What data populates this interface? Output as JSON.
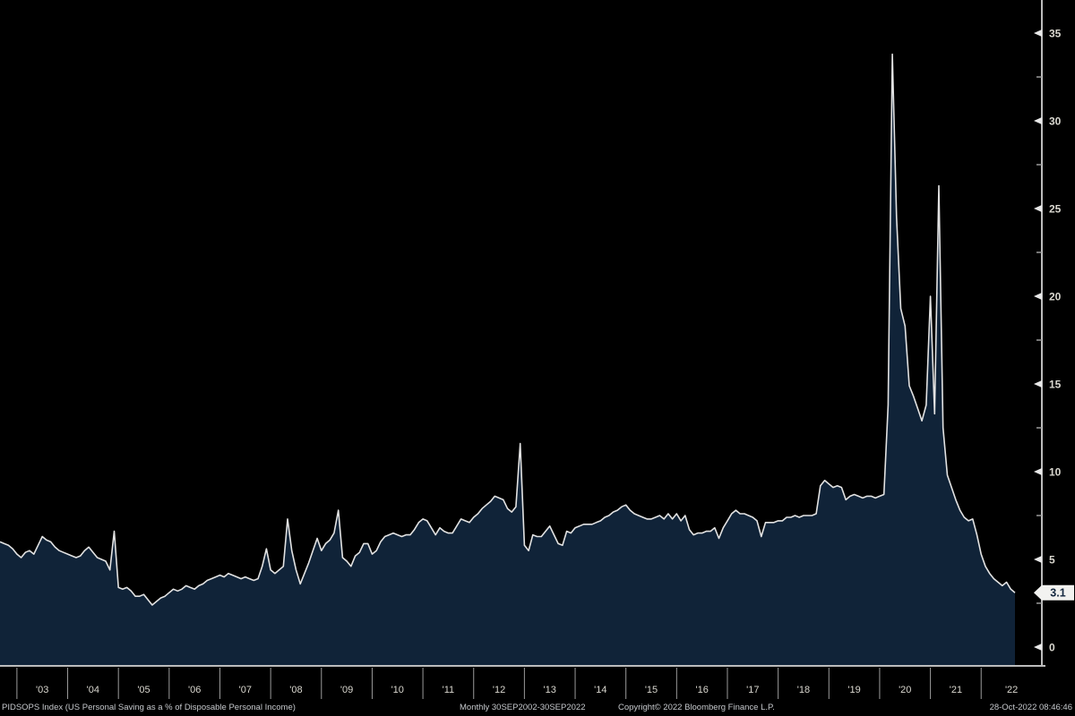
{
  "chart_data": {
    "type": "area",
    "title": "US Personal Saving as a % of Disposable Personal Income",
    "security": "PIDSOPS Index",
    "periodicity": "Monthly",
    "date_range": "30SEP2002-30SEP2022",
    "x_start": "Sep 2002",
    "x_end": "Sep 2022",
    "x_tick_labels": [
      "'03",
      "'04",
      "'05",
      "'06",
      "'07",
      "'08",
      "'09",
      "'10",
      "'11",
      "'12",
      "'13",
      "'14",
      "'15",
      "'16",
      "'17",
      "'18",
      "'19",
      "'20",
      "'21",
      "'22"
    ],
    "y_ticks": [
      0,
      5,
      10,
      15,
      20,
      25,
      30,
      35
    ],
    "y_minor_ticks": [
      2.5,
      7.5,
      12.5,
      17.5,
      22.5,
      27.5,
      32.5
    ],
    "ylim": [
      -1.07,
      36.9
    ],
    "grid": "off",
    "legend": "none",
    "last_value": 3.1,
    "last_value_label": "3.1",
    "series": [
      {
        "name": "PIDSOPS Index",
        "frequency": "monthly",
        "start": "2002-09",
        "end": "2022-09",
        "values": [
          6.0,
          5.9,
          5.8,
          5.6,
          5.3,
          5.1,
          5.4,
          5.5,
          5.3,
          5.8,
          6.3,
          6.1,
          6.0,
          5.7,
          5.5,
          5.4,
          5.3,
          5.2,
          5.1,
          5.2,
          5.5,
          5.7,
          5.4,
          5.1,
          5.0,
          4.9,
          4.4,
          6.6,
          3.4,
          3.3,
          3.4,
          3.2,
          2.9,
          2.9,
          3.0,
          2.7,
          2.4,
          2.6,
          2.8,
          2.9,
          3.1,
          3.3,
          3.2,
          3.3,
          3.5,
          3.4,
          3.3,
          3.5,
          3.6,
          3.8,
          3.9,
          4.0,
          4.1,
          4.0,
          4.2,
          4.1,
          4.0,
          3.9,
          4.0,
          3.9,
          3.8,
          3.9,
          4.6,
          5.6,
          4.4,
          4.2,
          4.4,
          4.6,
          7.3,
          5.5,
          4.4,
          3.6,
          4.2,
          4.8,
          5.5,
          6.2,
          5.5,
          5.9,
          6.1,
          6.5,
          7.8,
          5.1,
          4.9,
          4.6,
          5.2,
          5.4,
          5.9,
          5.9,
          5.3,
          5.5,
          6.0,
          6.3,
          6.4,
          6.5,
          6.4,
          6.3,
          6.4,
          6.4,
          6.7,
          7.1,
          7.3,
          7.2,
          6.8,
          6.4,
          6.8,
          6.6,
          6.5,
          6.5,
          6.9,
          7.3,
          7.2,
          7.1,
          7.4,
          7.6,
          7.9,
          8.1,
          8.3,
          8.6,
          8.5,
          8.4,
          7.9,
          7.7,
          8.0,
          11.6,
          5.8,
          5.5,
          6.4,
          6.3,
          6.3,
          6.6,
          6.9,
          6.4,
          5.9,
          5.8,
          6.6,
          6.5,
          6.8,
          6.9,
          7.0,
          7.0,
          7.0,
          7.1,
          7.2,
          7.4,
          7.5,
          7.7,
          7.8,
          8.0,
          8.1,
          7.8,
          7.6,
          7.5,
          7.4,
          7.3,
          7.3,
          7.4,
          7.5,
          7.3,
          7.6,
          7.3,
          7.6,
          7.2,
          7.5,
          6.7,
          6.4,
          6.5,
          6.5,
          6.6,
          6.6,
          6.8,
          6.2,
          6.8,
          7.2,
          7.6,
          7.8,
          7.6,
          7.6,
          7.5,
          7.4,
          7.2,
          6.3,
          7.1,
          7.1,
          7.1,
          7.2,
          7.2,
          7.4,
          7.4,
          7.5,
          7.4,
          7.5,
          7.5,
          7.5,
          7.6,
          9.2,
          9.5,
          9.3,
          9.1,
          9.2,
          9.1,
          8.4,
          8.6,
          8.7,
          8.6,
          8.5,
          8.6,
          8.6,
          8.5,
          8.6,
          8.7,
          13.8,
          33.8,
          24.5,
          19.3,
          18.3,
          14.9,
          14.3,
          13.6,
          12.9,
          13.8,
          20.0,
          13.3,
          26.3,
          12.5,
          9.8,
          9.1,
          8.4,
          7.8,
          7.4,
          7.2,
          7.3,
          6.4,
          5.3,
          4.6,
          4.2,
          3.9,
          3.7,
          3.5,
          3.7,
          3.3,
          3.1
        ]
      }
    ],
    "colors": {
      "background": "#000000",
      "line": "#e2e2e2",
      "area_fill": "#102338",
      "axis_line": "#bcbcbc",
      "tick_separator": "#9b9b9b",
      "tick_label": "#d9d7cf",
      "badge_background": "#f2f2f0",
      "badge_text": "#13273f"
    }
  },
  "footer": {
    "description": "PIDSOPS Index (US Personal Saving as a % of Disposable Personal Income)",
    "periodicity_range": "Monthly 30SEP2002-30SEP2022",
    "copyright": "Copyright© 2022 Bloomberg Finance L.P.",
    "timestamp": "28-Oct-2022 08:46:46"
  }
}
